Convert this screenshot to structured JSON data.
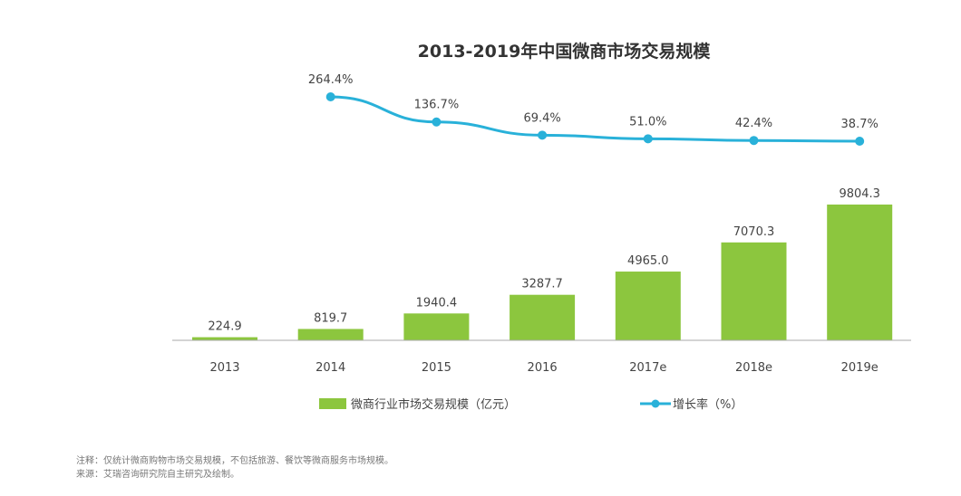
{
  "chart_data": {
    "type": "bar+line",
    "title": "2013-2019年中国微商市场交易规模",
    "categories": [
      "2013",
      "2014",
      "2015",
      "2016",
      "2017e",
      "2018e",
      "2019e"
    ],
    "series": [
      {
        "name": "微商行业市场交易规模（亿元）",
        "type": "bar",
        "color": "#8cc63e",
        "values": [
          224.9,
          819.7,
          1940.4,
          3287.7,
          4965.0,
          7070.3,
          9804.3
        ],
        "labels": [
          "224.9",
          "819.7",
          "1940.4",
          "3287.7",
          "4965.0",
          "7070.3",
          "9804.3"
        ]
      },
      {
        "name": "增长率（%）",
        "type": "line",
        "color": "#29b1d9",
        "values": [
          null,
          264.4,
          136.7,
          69.4,
          51.0,
          42.4,
          38.7
        ],
        "labels": [
          "",
          "264.4%",
          "136.7%",
          "69.4%",
          "51.0%",
          "42.4%",
          "38.7%"
        ]
      }
    ],
    "grid": false,
    "legend_position": "bottom"
  },
  "notes": {
    "note": "注释：仅统计微商购物市场交易规模，不包括旅游、餐饮等微商服务市场规模。",
    "source": "来源：艾瑞咨询研究院自主研究及绘制。"
  }
}
